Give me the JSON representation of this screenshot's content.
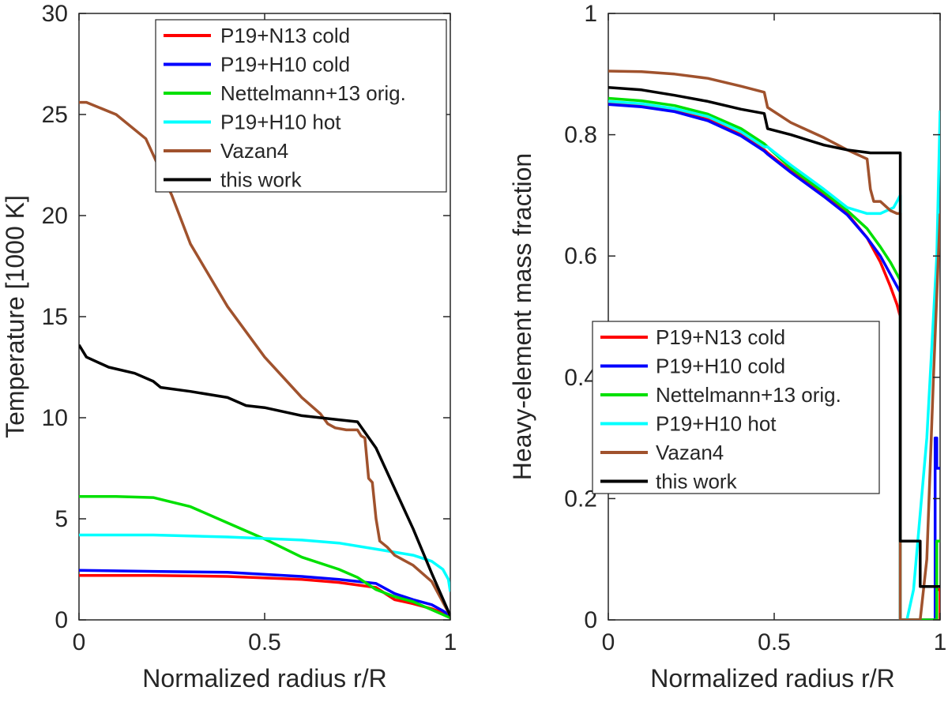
{
  "chart_data": [
    {
      "type": "line",
      "title": "",
      "xlabel": "Normalized radius r/R",
      "ylabel": "Temperature [1000 K]",
      "xlim": [
        0,
        1
      ],
      "ylim": [
        0,
        30
      ],
      "xticks": [
        0,
        0.5,
        1
      ],
      "xtick_labels": [
        "0",
        "0.5",
        "1"
      ],
      "yticks": [
        0,
        5,
        10,
        15,
        20,
        25,
        30
      ],
      "ytick_labels": [
        "0",
        "5",
        "10",
        "15",
        "20",
        "25",
        "30"
      ],
      "grid": false,
      "legend_position": "top-right",
      "series": [
        {
          "name": "P19+N13 cold",
          "color": "#ff0000",
          "x": [
            0,
            0.2,
            0.4,
            0.6,
            0.7,
            0.8,
            0.85,
            0.9,
            0.95,
            0.98,
            1.0
          ],
          "y": [
            2.2,
            2.2,
            2.15,
            2.0,
            1.85,
            1.6,
            1.0,
            0.8,
            0.55,
            0.35,
            0.1
          ]
        },
        {
          "name": "P19+H10 cold",
          "color": "#0000ff",
          "x": [
            0,
            0.2,
            0.4,
            0.6,
            0.7,
            0.8,
            0.85,
            0.9,
            0.95,
            0.98,
            1.0
          ],
          "y": [
            2.45,
            2.4,
            2.35,
            2.15,
            2.0,
            1.8,
            1.3,
            1.0,
            0.75,
            0.45,
            0.2
          ]
        },
        {
          "name": "Nettelmann+13 orig.",
          "color": "#00e000",
          "x": [
            0,
            0.1,
            0.2,
            0.3,
            0.4,
            0.5,
            0.6,
            0.7,
            0.75,
            0.8,
            0.85,
            0.9,
            0.95,
            1.0
          ],
          "y": [
            6.1,
            6.1,
            6.05,
            5.6,
            4.8,
            4.0,
            3.1,
            2.5,
            2.1,
            1.5,
            1.15,
            0.9,
            0.5,
            0.1
          ]
        },
        {
          "name": "P19+H10 hot",
          "color": "#00ffff",
          "x": [
            0,
            0.2,
            0.4,
            0.6,
            0.7,
            0.8,
            0.9,
            0.95,
            0.98,
            0.995,
            1.0
          ],
          "y": [
            4.2,
            4.2,
            4.1,
            3.95,
            3.8,
            3.5,
            3.2,
            2.9,
            2.5,
            2.0,
            1.4
          ]
        },
        {
          "name": "Vazan4",
          "color": "#a0522d",
          "x": [
            0,
            0.02,
            0.1,
            0.18,
            0.25,
            0.3,
            0.4,
            0.5,
            0.6,
            0.65,
            0.67,
            0.69,
            0.72,
            0.75,
            0.76,
            0.77,
            0.78,
            0.79,
            0.8,
            0.81,
            0.83,
            0.85,
            0.9,
            0.95,
            1.0
          ],
          "y": [
            25.6,
            25.6,
            25.0,
            23.8,
            21.0,
            18.6,
            15.5,
            13.0,
            11.0,
            10.2,
            9.7,
            9.5,
            9.4,
            9.4,
            9.1,
            9.0,
            7.0,
            6.8,
            5.0,
            3.9,
            3.6,
            3.2,
            2.7,
            1.9,
            0.2
          ]
        },
        {
          "name": "this work",
          "color": "#000000",
          "x": [
            0,
            0.02,
            0.08,
            0.15,
            0.2,
            0.22,
            0.3,
            0.4,
            0.45,
            0.5,
            0.6,
            0.7,
            0.75,
            0.8,
            0.85,
            0.9,
            0.95,
            1.0
          ],
          "y": [
            13.6,
            13.0,
            12.5,
            12.2,
            11.8,
            11.5,
            11.3,
            11.0,
            10.6,
            10.5,
            10.1,
            9.9,
            9.8,
            8.5,
            6.5,
            4.5,
            2.3,
            0.2
          ]
        }
      ]
    },
    {
      "type": "line",
      "title": "",
      "xlabel": "Normalized radius r/R",
      "ylabel": "Heavy-element mass fraction",
      "xlim": [
        0,
        1
      ],
      "ylim": [
        0,
        1
      ],
      "xticks": [
        0,
        0.5,
        1
      ],
      "xtick_labels": [
        "0",
        "0.5",
        "1"
      ],
      "yticks": [
        0,
        0.2,
        0.4,
        0.6,
        0.8,
        1
      ],
      "ytick_labels": [
        "0",
        "0.2",
        "0.4",
        "0.6",
        "0.8",
        "1"
      ],
      "grid": false,
      "legend_position": "middle-left",
      "series": [
        {
          "name": "P19+N13 cold",
          "color": "#ff0000",
          "x": [
            0,
            0.1,
            0.2,
            0.3,
            0.4,
            0.47,
            0.48,
            0.55,
            0.65,
            0.72,
            0.78,
            0.82,
            0.85,
            0.87,
            0.88,
            0.88,
            0.99,
            0.99,
            1.0,
            1.0
          ],
          "y": [
            0.852,
            0.848,
            0.84,
            0.825,
            0.8,
            0.775,
            0.77,
            0.74,
            0.7,
            0.67,
            0.63,
            0.59,
            0.55,
            0.52,
            0.5,
            0,
            0,
            0.05,
            0.05,
            0
          ]
        },
        {
          "name": "P19+H10 cold",
          "color": "#0000ff",
          "x": [
            0,
            0.1,
            0.2,
            0.3,
            0.4,
            0.47,
            0.48,
            0.55,
            0.65,
            0.72,
            0.78,
            0.82,
            0.85,
            0.87,
            0.88,
            0.88,
            0.985,
            0.985,
            0.99,
            0.99,
            1.0
          ],
          "y": [
            0.85,
            0.846,
            0.838,
            0.823,
            0.798,
            0.773,
            0.768,
            0.738,
            0.698,
            0.668,
            0.63,
            0.6,
            0.57,
            0.55,
            0.54,
            0,
            0,
            0.3,
            0.3,
            0.25,
            0.25
          ]
        },
        {
          "name": "Nettelmann+13 orig.",
          "color": "#00e000",
          "x": [
            0,
            0.1,
            0.2,
            0.3,
            0.4,
            0.47,
            0.48,
            0.55,
            0.65,
            0.72,
            0.78,
            0.82,
            0.85,
            0.87,
            0.88,
            0.88,
            0.99,
            0.99,
            1.0
          ],
          "y": [
            0.86,
            0.856,
            0.848,
            0.834,
            0.81,
            0.785,
            0.78,
            0.745,
            0.705,
            0.675,
            0.645,
            0.615,
            0.59,
            0.57,
            0.56,
            0,
            0,
            0.13,
            0.13
          ]
        },
        {
          "name": "P19+H10 hot",
          "color": "#00ffff",
          "x": [
            0,
            0.1,
            0.2,
            0.3,
            0.4,
            0.47,
            0.48,
            0.55,
            0.65,
            0.72,
            0.78,
            0.82,
            0.86,
            0.88,
            0.88,
            0.9,
            0.92,
            0.96,
            0.99,
            1.0
          ],
          "y": [
            0.855,
            0.851,
            0.843,
            0.83,
            0.805,
            0.78,
            0.78,
            0.75,
            0.71,
            0.68,
            0.67,
            0.67,
            0.68,
            0.7,
            0,
            0,
            0.05,
            0.3,
            0.6,
            0.84
          ]
        },
        {
          "name": "Vazan4",
          "color": "#a0522d",
          "x": [
            0,
            0.1,
            0.2,
            0.3,
            0.4,
            0.47,
            0.48,
            0.55,
            0.65,
            0.72,
            0.78,
            0.79,
            0.8,
            0.82,
            0.85,
            0.87,
            0.88,
            0.88,
            0.94,
            0.96,
            0.98,
            1.0
          ],
          "y": [
            0.905,
            0.904,
            0.9,
            0.893,
            0.88,
            0.87,
            0.845,
            0.82,
            0.795,
            0.775,
            0.76,
            0.71,
            0.69,
            0.69,
            0.675,
            0.67,
            0.67,
            0,
            0,
            0.1,
            0.4,
            0.67
          ]
        },
        {
          "name": "this work",
          "color": "#000000",
          "x": [
            0,
            0.1,
            0.2,
            0.3,
            0.4,
            0.47,
            0.48,
            0.55,
            0.65,
            0.72,
            0.79,
            0.8,
            0.88,
            0.88,
            0.94,
            0.94,
            1.0
          ],
          "y": [
            0.878,
            0.874,
            0.865,
            0.855,
            0.842,
            0.835,
            0.81,
            0.8,
            0.783,
            0.775,
            0.77,
            0.77,
            0.77,
            0.13,
            0.13,
            0.055,
            0.055
          ]
        }
      ]
    }
  ]
}
